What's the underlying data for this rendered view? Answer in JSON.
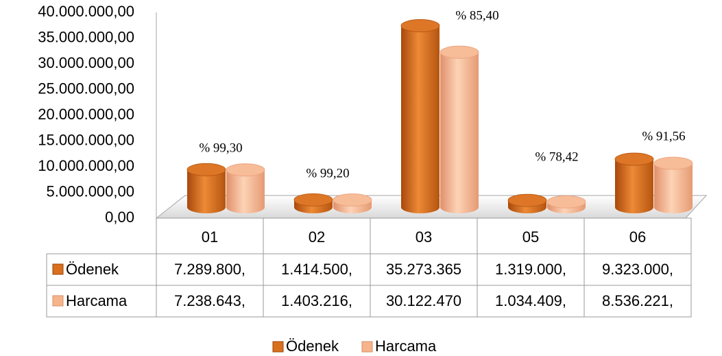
{
  "chart_data": {
    "type": "bar",
    "categories": [
      "01",
      "02",
      "03",
      "05",
      "06"
    ],
    "series": [
      {
        "name": "Ödenek",
        "color": "#d8701e",
        "values": [
          7289800,
          1414500,
          35273365,
          1319000,
          9323000
        ],
        "value_labels": [
          "7.289.800,",
          "1.414.500,",
          "35.273.365",
          "1.319.000,",
          "9.323.000,"
        ]
      },
      {
        "name": "Harcama",
        "color": "#f6b48c",
        "values": [
          7238643,
          1403216,
          30122470,
          1034409,
          8536221
        ],
        "value_labels": [
          "7.238.643,",
          "1.403.216,",
          "30.122.470",
          "1.034.409,",
          "8.536.221,"
        ]
      }
    ],
    "annotations": [
      "% 99,30",
      "% 99,20",
      "% 85,40",
      "% 78,42",
      "% 91,56"
    ],
    "ylim": [
      0,
      40000000
    ],
    "yticks": [
      {
        "value": 0,
        "label": "0,00"
      },
      {
        "value": 5000000,
        "label": "5.000.000,00"
      },
      {
        "value": 10000000,
        "label": "10.000.000,00"
      },
      {
        "value": 15000000,
        "label": "15.000.000,00"
      },
      {
        "value": 20000000,
        "label": "20.000.000,00"
      },
      {
        "value": 25000000,
        "label": "25.000.000,00"
      },
      {
        "value": 30000000,
        "label": "30.000.000,00"
      },
      {
        "value": 35000000,
        "label": "35.000.000,00"
      },
      {
        "value": 40000000,
        "label": "40.000.000,00"
      }
    ],
    "legend": "bottom"
  }
}
